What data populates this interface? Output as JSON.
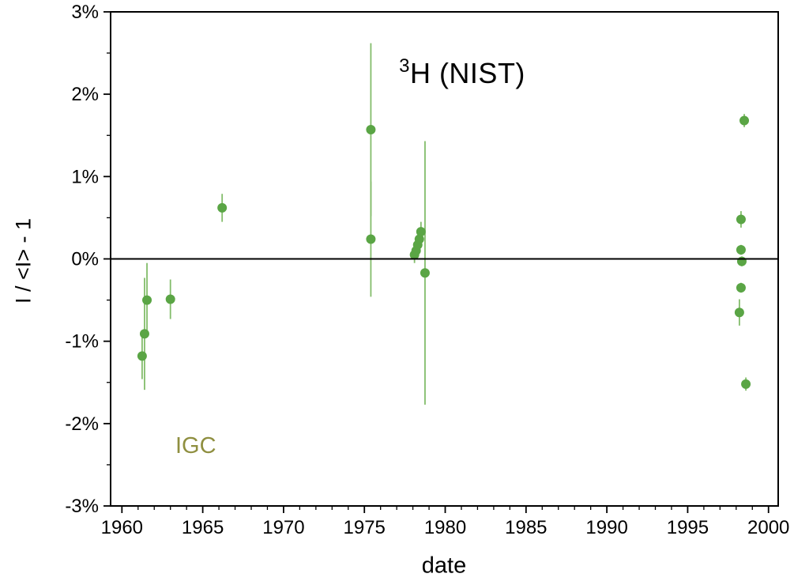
{
  "chart_data": {
    "type": "scatter",
    "title_sup": "3",
    "title_main": "H (NIST)",
    "xlabel": "date",
    "ylabel": "I / <I> - 1",
    "annotation": "IGC",
    "annotation_color": "#8f8f40",
    "point_color": "#5aa545",
    "errorbar_color": "#83bd6b",
    "frame_color": "#000000",
    "xlim": [
      1959.3,
      2000.6
    ],
    "ylim": [
      -3,
      3
    ],
    "x_ticks": [
      {
        "v": 1960,
        "label": "1960"
      },
      {
        "v": 1965,
        "label": "1965"
      },
      {
        "v": 1970,
        "label": "1970"
      },
      {
        "v": 1975,
        "label": "1975"
      },
      {
        "v": 1980,
        "label": "1980"
      },
      {
        "v": 1985,
        "label": "1985"
      },
      {
        "v": 1990,
        "label": "1990"
      },
      {
        "v": 1995,
        "label": "1995"
      },
      {
        "v": 2000,
        "label": "2000"
      }
    ],
    "y_ticks": [
      {
        "v": 3,
        "label": "3%"
      },
      {
        "v": 2,
        "label": "2%"
      },
      {
        "v": 1,
        "label": "1%"
      },
      {
        "v": 0,
        "label": "0%"
      },
      {
        "v": -1,
        "label": "-1%"
      },
      {
        "v": -2,
        "label": "-2%"
      },
      {
        "v": -3,
        "label": "-3%"
      }
    ],
    "minor_x_step": 1,
    "minor_y_step": 0.5,
    "zero_line": 0,
    "points": [
      {
        "x": 1961.25,
        "y": -1.18,
        "err": 0.28
      },
      {
        "x": 1961.4,
        "y": -0.91,
        "err": 0.68
      },
      {
        "x": 1961.55,
        "y": -0.5,
        "err": 0.45
      },
      {
        "x": 1963.0,
        "y": -0.49,
        "err": 0.24
      },
      {
        "x": 1966.2,
        "y": 0.62,
        "err": 0.17
      },
      {
        "x": 1975.4,
        "y": 1.57,
        "err": 1.05
      },
      {
        "x": 1975.4,
        "y": 0.24,
        "err": 0.7
      },
      {
        "x": 1978.1,
        "y": 0.05,
        "err": 0.1
      },
      {
        "x": 1978.2,
        "y": 0.1,
        "err": 0.1
      },
      {
        "x": 1978.3,
        "y": 0.17,
        "err": 0.12
      },
      {
        "x": 1978.4,
        "y": 0.24,
        "err": 0.12
      },
      {
        "x": 1978.5,
        "y": 0.33,
        "err": 0.12
      },
      {
        "x": 1978.75,
        "y": -0.17,
        "err": 1.6
      },
      {
        "x": 1998.3,
        "y": 0.48,
        "err": 0.1
      },
      {
        "x": 1998.3,
        "y": 0.11,
        "err": 0.06
      },
      {
        "x": 1998.35,
        "y": -0.03,
        "err": 0.06
      },
      {
        "x": 1998.3,
        "y": -0.35,
        "err": 0.06
      },
      {
        "x": 1998.2,
        "y": -0.65,
        "err": 0.16
      },
      {
        "x": 1998.5,
        "y": 1.68,
        "err": 0.08
      },
      {
        "x": 1998.6,
        "y": -1.52,
        "err": 0.08
      }
    ]
  }
}
